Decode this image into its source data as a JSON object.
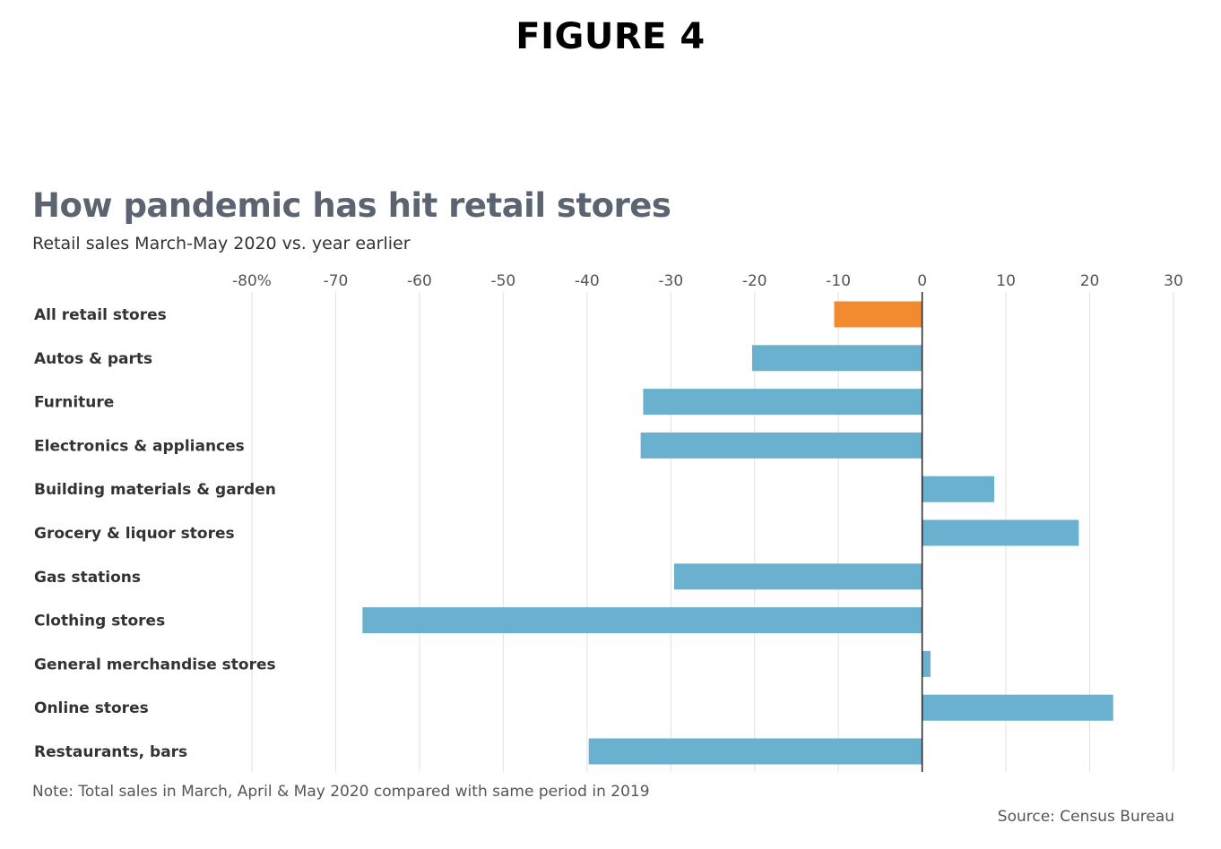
{
  "header": {
    "figure_label": "FIGURE 4"
  },
  "chart_data": {
    "type": "bar",
    "orientation": "horizontal",
    "title": "How pandemic has hit retail stores",
    "subtitle": "Retail sales March-May 2020 vs. year earlier",
    "xlim": [
      -80,
      30
    ],
    "tick_values": [
      -80,
      -70,
      -60,
      -50,
      -40,
      -30,
      -20,
      -10,
      0,
      10,
      20,
      30
    ],
    "tick_labels": [
      "-80%",
      "-70",
      "-60",
      "-50",
      "-40",
      "-30",
      "-20",
      "-10",
      "0",
      "10",
      "20",
      "30"
    ],
    "grid": true,
    "categories": [
      "All retail stores",
      "Autos & parts",
      "Furniture",
      "Electronics & appliances",
      "Building materials & garden",
      "Grocery & liquor stores",
      "Gas stations",
      "Clothing stores",
      "General merchandise stores",
      "Online stores",
      "Restaurants, bars"
    ],
    "values": [
      -10.5,
      -20.3,
      -33.3,
      -33.6,
      8.6,
      18.7,
      -29.6,
      -66.8,
      1.0,
      22.8,
      -39.8
    ],
    "highlight_index": 0,
    "colors": {
      "highlight": "#f28b30",
      "bar": "#6ab0cf",
      "grid": "#e0e0e0",
      "zero_line": "#222222"
    },
    "note": "Note: Total sales in March, April & May 2020 compared with same period in 2019",
    "source": "Source: Census Bureau"
  }
}
